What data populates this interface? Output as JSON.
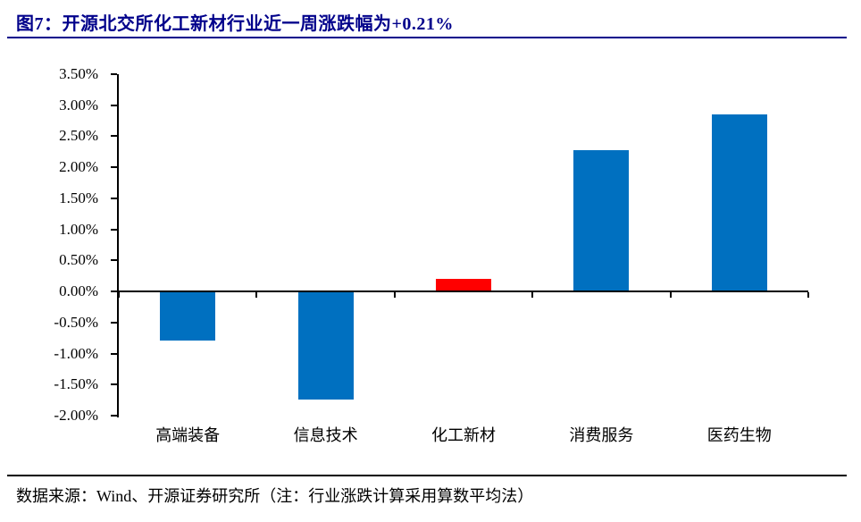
{
  "title": "图7：开源北交所化工新材行业近一周涨跌幅为+0.21%",
  "source_note": "数据来源：Wind、开源证券研究所（注：行业涨跌计算采用算数平均法）",
  "colors": {
    "title_navy": "#00008B",
    "bar_blue": "#0070C0",
    "bar_highlight_red": "#FF0000",
    "axis_black": "#000000"
  },
  "chart_data": {
    "type": "bar",
    "title": "图7：开源北交所化工新材行业近一周涨跌幅为+0.21%",
    "categories": [
      "高端装备",
      "信息技术",
      "化工新材",
      "消费服务",
      "医药生物"
    ],
    "values": [
      -0.79,
      -1.74,
      0.21,
      2.27,
      2.85
    ],
    "bar_colors": [
      "#0070C0",
      "#0070C0",
      "#FF0000",
      "#0070C0",
      "#0070C0"
    ],
    "highlight_category": "化工新材",
    "highlight_value_pct": "+0.21%",
    "xlabel": "",
    "ylabel": "",
    "ylim": [
      -2.0,
      3.5
    ],
    "ytick_step": 0.5,
    "ytick_labels": [
      "3.50%",
      "3.00%",
      "2.50%",
      "2.00%",
      "1.50%",
      "1.00%",
      "0.50%",
      "0.00%",
      "-0.50%",
      "-1.00%",
      "-1.50%",
      "-2.00%"
    ],
    "grid": false,
    "legend_position": "none",
    "unit": "percent"
  }
}
